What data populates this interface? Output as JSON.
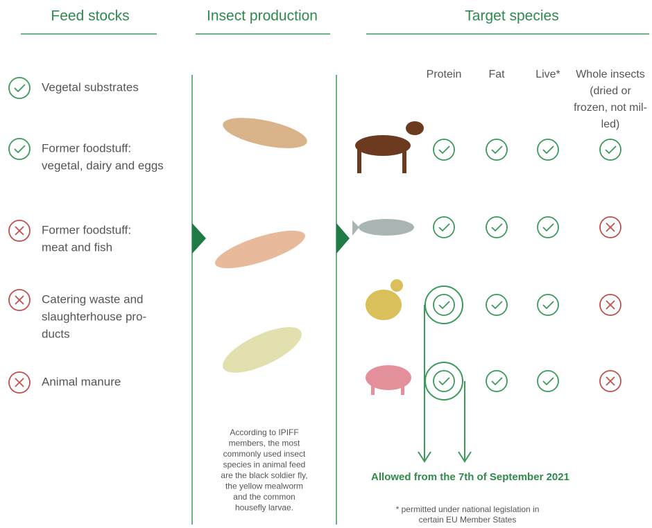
{
  "headers": {
    "feed_stocks": "Feed stocks",
    "insect_production": "Insect production",
    "target_species": "Target species"
  },
  "feed_stocks": [
    {
      "lines": [
        "Vegetal substrates"
      ]
    },
    {
      "lines": [
        "Former foodstuff:",
        "vegetal, dairy and eggs"
      ]
    },
    {
      "lines": [
        "Former foodstuff:",
        "meat and fish"
      ]
    },
    {
      "lines": [
        "Catering waste and",
        "slaughterhouse pro-",
        "ducts"
      ]
    },
    {
      "lines": [
        "Animal manure"
      ]
    }
  ],
  "columns": [
    {
      "lines": [
        "Protein"
      ]
    },
    {
      "lines": [
        "Fat"
      ]
    },
    {
      "lines": [
        "Live*"
      ]
    },
    {
      "lines": [
        "Whole insects",
        "(dried or",
        "frozen, not mil-",
        "led)"
      ]
    }
  ],
  "insect_note": [
    "According to IPIFF",
    "members, the most",
    "commonly used insect",
    "species in animal feed",
    "are the black soldier fly,",
    "the yellow mealworm",
    "and the common",
    "housefly larvae."
  ],
  "allowed_note": "Allowed from the 7th of September 2021",
  "footnote": [
    "* permitted under national legislation in",
    "certain EU Member States"
  ]
}
